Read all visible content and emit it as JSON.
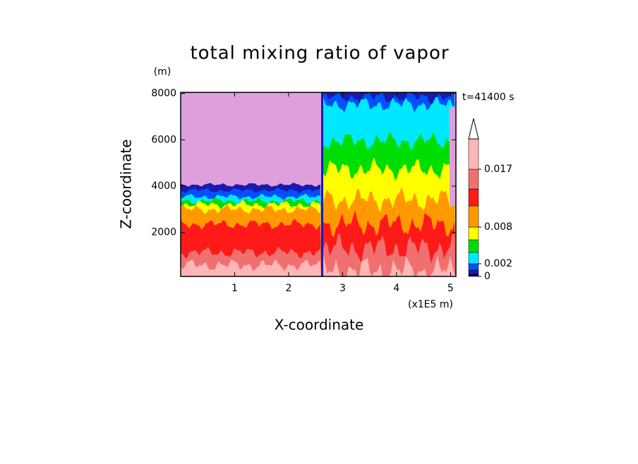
{
  "chart_data": {
    "type": "contour",
    "title": "total mixing ratio of vapor",
    "y_unit": "(m)",
    "time_label": "t=41400 s",
    "x_label": "X-coordinate",
    "x_unit": "(x1E5 m)",
    "y_label": "Z-coordinate",
    "xlim": [
      0,
      5.1
    ],
    "xticks": [
      1,
      2,
      3,
      4,
      5
    ],
    "ylim": [
      100,
      8050
    ],
    "yticks": [
      2000,
      4000,
      6000,
      8000
    ],
    "colorbar": {
      "colors": [
        "#000060",
        "#1a1ab0",
        "#0050ff",
        "#00e8ff",
        "#00dd00",
        "#ffff00",
        "#ff9900",
        "#ff1a1a",
        "#f07070",
        "#ffb6b6"
      ],
      "ticks": [
        0,
        0.002,
        0.008,
        0.017
      ]
    }
  }
}
